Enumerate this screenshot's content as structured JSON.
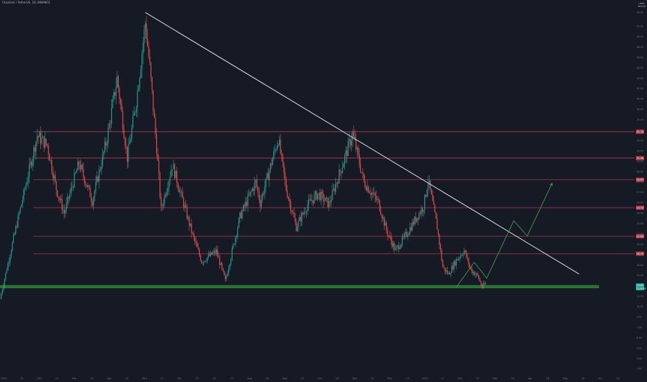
{
  "header": {
    "symbol": "Chainlink / TetherUS, 1D, BINANCE",
    "currency": "USDT",
    "currency_sub": "Normal"
  },
  "colors": {
    "background": "#161a25",
    "up": "#26a69a",
    "down": "#ef5350",
    "trendline": "#e0e3eb",
    "support_zone": "#2e7d32",
    "support_label": "#26a69a",
    "resistance": "#b23a48",
    "projection": "#43a047",
    "axis_text": "#787b86"
  },
  "chart_data": {
    "type": "candlestick",
    "symbol": "LINK/USDT",
    "timeframe": "1D",
    "x_labels": [
      "2021",
      "15",
      "Feb",
      "15",
      "Mar",
      "15",
      "Apr",
      "15",
      "May",
      "17",
      "Jun",
      "15",
      "Jul",
      "19",
      "Aug",
      "16",
      "Sep",
      "13",
      "Oct",
      "18",
      "Nov",
      "15",
      "Dec",
      "13",
      "2022",
      "17",
      "Feb",
      "14",
      "Mar",
      "14",
      "Apr",
      "18",
      "May",
      "16",
      "Jun",
      "13"
    ],
    "y_ticks": [
      "53.00",
      "51.00",
      "49.50",
      "48.00",
      "46.50",
      "45.00",
      "43.50",
      "42.00",
      "40.50",
      "39.00",
      "37.50",
      "36.00",
      "34.50",
      "33.00",
      "31.50",
      "30.00",
      "28.50",
      "27.00",
      "25.50",
      "24.00",
      "22.50",
      "21.00",
      "19.50",
      "18.00",
      "16.50",
      "15.00",
      "13.50",
      "12.00",
      "10.50",
      "9.00",
      "7.50",
      "6.00",
      "4.50",
      "3.00",
      "1.50"
    ],
    "ylim": [
      0.8,
      54.2
    ],
    "price_levels": [
      {
        "value": 35.76,
        "label": "35.76"
      },
      {
        "value": 31.96,
        "label": "31.96"
      },
      {
        "value": 28.83,
        "label": "28.83"
      },
      {
        "value": 24.79,
        "label": "24.79"
      },
      {
        "value": 20.66,
        "label": "20.66"
      },
      {
        "value": 18.14,
        "label": "18.14"
      }
    ],
    "current_price": {
      "value": 13.45,
      "label": "13.45",
      "sub_label": "13:45:08"
    },
    "support_zone": {
      "low": 13.15,
      "high": 13.6
    },
    "trendline": {
      "start": {
        "date": "2021-05-10",
        "price": 53.0
      },
      "end": {
        "date": "2022-05-30",
        "price": 15.2
      }
    },
    "projection_path": [
      {
        "date": "2022-02-10",
        "price": 13.3
      },
      {
        "date": "2022-02-26",
        "price": 16.9
      },
      {
        "date": "2022-03-09",
        "price": 14.6
      },
      {
        "date": "2022-04-02",
        "price": 22.9
      },
      {
        "date": "2022-04-14",
        "price": 20.7
      },
      {
        "date": "2022-05-06",
        "price": 28.3
      }
    ],
    "price_anchors": [
      {
        "date": "2021-01-01",
        "price": 11.6
      },
      {
        "date": "2021-01-16",
        "price": 22.5
      },
      {
        "date": "2021-02-03",
        "price": 35.2
      },
      {
        "date": "2021-02-12",
        "price": 33.8
      },
      {
        "date": "2021-02-20",
        "price": 27.5
      },
      {
        "date": "2021-02-27",
        "price": 24.0
      },
      {
        "date": "2021-03-12",
        "price": 31.2
      },
      {
        "date": "2021-03-24",
        "price": 25.8
      },
      {
        "date": "2021-04-06",
        "price": 34.8
      },
      {
        "date": "2021-04-15",
        "price": 43.5
      },
      {
        "date": "2021-04-24",
        "price": 32.0
      },
      {
        "date": "2021-05-02",
        "price": 40.2
      },
      {
        "date": "2021-05-10",
        "price": 51.5
      },
      {
        "date": "2021-05-14",
        "price": 45.0
      },
      {
        "date": "2021-05-20",
        "price": 33.5
      },
      {
        "date": "2021-05-24",
        "price": 24.5
      },
      {
        "date": "2021-06-03",
        "price": 31.0
      },
      {
        "date": "2021-06-21",
        "price": 20.8
      },
      {
        "date": "2021-06-29",
        "price": 17.0
      },
      {
        "date": "2021-07-12",
        "price": 18.5
      },
      {
        "date": "2021-07-20",
        "price": 14.2
      },
      {
        "date": "2021-08-02",
        "price": 23.5
      },
      {
        "date": "2021-08-16",
        "price": 28.5
      },
      {
        "date": "2021-08-20",
        "price": 25.5
      },
      {
        "date": "2021-09-05",
        "price": 34.8
      },
      {
        "date": "2021-09-12",
        "price": 27.5
      },
      {
        "date": "2021-09-21",
        "price": 22.0
      },
      {
        "date": "2021-10-01",
        "price": 25.2
      },
      {
        "date": "2021-10-10",
        "price": 26.8
      },
      {
        "date": "2021-10-20",
        "price": 25.3
      },
      {
        "date": "2021-11-01",
        "price": 31.0
      },
      {
        "date": "2021-11-10",
        "price": 35.5
      },
      {
        "date": "2021-11-20",
        "price": 28.5
      },
      {
        "date": "2021-12-03",
        "price": 25.5
      },
      {
        "date": "2021-12-10",
        "price": 21.5
      },
      {
        "date": "2021-12-18",
        "price": 18.6
      },
      {
        "date": "2021-12-28",
        "price": 21.0
      },
      {
        "date": "2022-01-05",
        "price": 23.2
      },
      {
        "date": "2022-01-12",
        "price": 25.0
      },
      {
        "date": "2022-01-16",
        "price": 28.8
      },
      {
        "date": "2022-01-24",
        "price": 22.0
      },
      {
        "date": "2022-01-29",
        "price": 16.2
      },
      {
        "date": "2022-02-03",
        "price": 15.2
      },
      {
        "date": "2022-02-10",
        "price": 17.2
      },
      {
        "date": "2022-02-17",
        "price": 18.6
      },
      {
        "date": "2022-02-23",
        "price": 15.8
      },
      {
        "date": "2022-03-01",
        "price": 14.9
      },
      {
        "date": "2022-03-05",
        "price": 13.3
      },
      {
        "date": "2022-03-08",
        "price": 13.8
      }
    ]
  }
}
